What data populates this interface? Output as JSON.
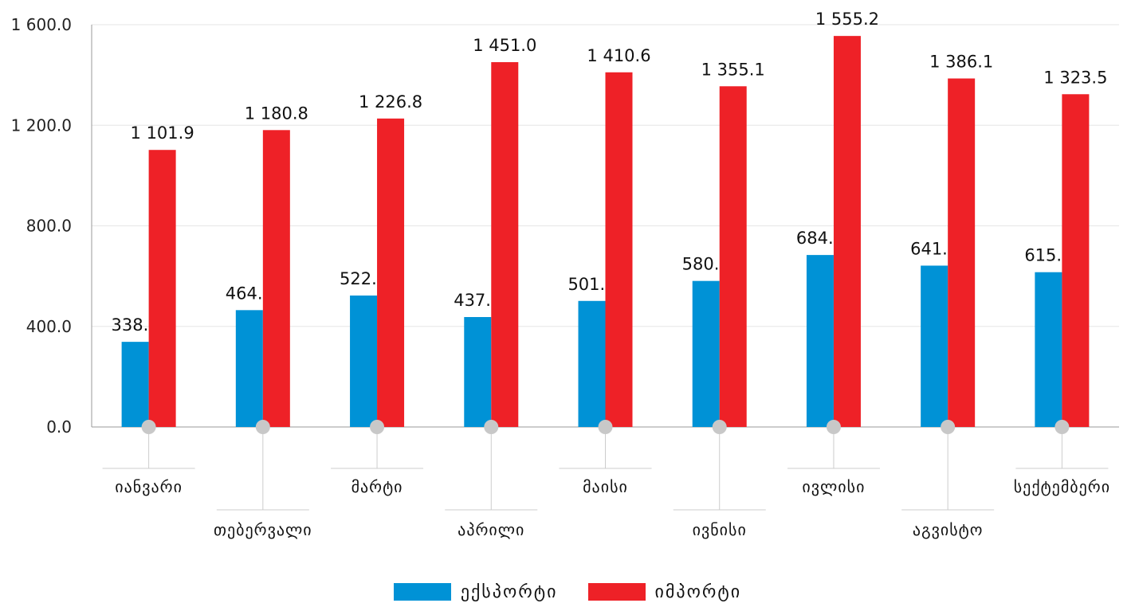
{
  "chart_data": {
    "type": "bar",
    "categories": [
      "იანვარი",
      "თებერვალი",
      "მარტი",
      "აპრილი",
      "მაისი",
      "ივნისი",
      "ივლისი",
      "აგვისტო",
      "სექტემბერი"
    ],
    "series": [
      {
        "name": "ექსპორტი",
        "color": "#0092D6",
        "values": [
          338.6,
          464.7,
          522.8,
          437.2,
          501.3,
          580.8,
          684.0,
          641.7,
          615.6
        ],
        "labels": [
          "338.6",
          "464.7",
          "522.8",
          "437.2",
          "501.3",
          "580.8",
          "684.0",
          "641.7",
          "615.6"
        ]
      },
      {
        "name": "იმპორტი",
        "color": "#EE2127",
        "values": [
          1101.9,
          1180.8,
          1226.8,
          1451.0,
          1410.6,
          1355.1,
          1555.2,
          1386.1,
          1323.5
        ],
        "labels": [
          "1 101.9",
          "1 180.8",
          "1 226.8",
          "1 451.0",
          "1 410.6",
          "1 355.1",
          "1 555.2",
          "1 386.1",
          "1 323.5"
        ]
      }
    ],
    "yticks": [
      0,
      400,
      800,
      1200,
      1600
    ],
    "ytick_labels": [
      "0.0",
      "400.0",
      "800.0",
      "1 200.0",
      "1 600.0"
    ],
    "ylim": [
      0,
      1600
    ],
    "grid": true,
    "legend_position": "bottom"
  },
  "colors": {
    "grid": "#e6e6e6",
    "axis": "#999999",
    "connector": "#cccccc",
    "marker": "#c8c8c8"
  }
}
